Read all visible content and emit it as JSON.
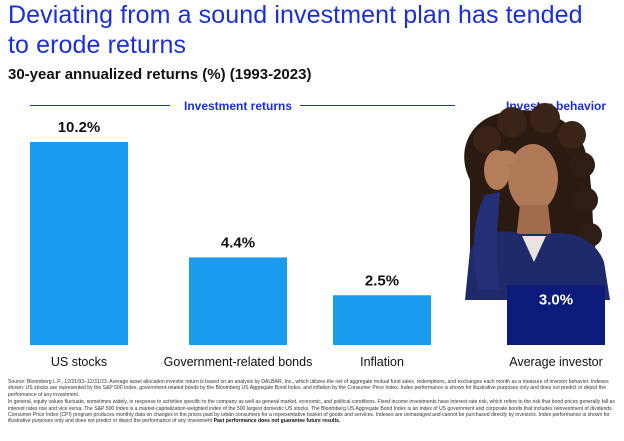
{
  "title": "Deviating from a sound investment plan has tended to erode returns",
  "subtitle": "30-year annualized returns (%) (1993-2023)",
  "groups": {
    "left": "Investment returns",
    "right": "Investor behavior"
  },
  "colors": {
    "bar": "#1a9bf0",
    "investor_bar": "#0c1a7a",
    "title": "#1b2fd8",
    "label_value": "#111111"
  },
  "chart_data": {
    "type": "bar",
    "title": "30-year annualized returns (%) (1993-2023)",
    "categories": [
      "US stocks",
      "Government-related bonds",
      "Inflation",
      "Average investor"
    ],
    "values": [
      10.2,
      4.4,
      2.5,
      3.0
    ],
    "value_labels": [
      "10.2%",
      "4.4%",
      "2.5%",
      "3.0%"
    ],
    "ylim": [
      0,
      11
    ],
    "grid": false,
    "xlabel": "",
    "ylabel": ""
  },
  "footnote": {
    "p1": "Source: Bloomberg L.P., 12/31/93–12/31/23. Average asset allocation investor return is based on an analysis by DALBAR, Inc., which utilizes the net of aggregate mutual fund sales, redemptions, and exchanges each month as a measure of investor behavior. Indexes shown: US stocks are represented by the S&P 500 Index, government-related bonds by the Bloomberg US Aggregate Bond Index, and inflation by the Consumer Price Index. Index performance is shown for illustrative purposes only and does not predict or depict the performance of any investment.",
    "p2": "In general, equity values fluctuate, sometimes widely, in response to activities specific to the company as well as general market, economic, and political conditions. Fixed income investments have interest rate risk, which refers to the risk that bond prices generally fall as interest rates rise and vice versa. The S&P 500 Index is a market-capitalization-weighted index of the 500 largest domestic US stocks. The Bloomberg US Aggregate Bond Index is an index of US government and corporate bonds that includes reinvestment of dividends. Consumer Price Index (CPI) program produces monthly data on changes in the prices paid by urban consumers for a representative basket of goods and services. Indexes are unmanaged and cannot be purchased directly by investors. Index performance is shown for illustrative purposes only and does not predict or depict the performance of any investment",
    "bold": "Past performance does not guarantee future results."
  }
}
